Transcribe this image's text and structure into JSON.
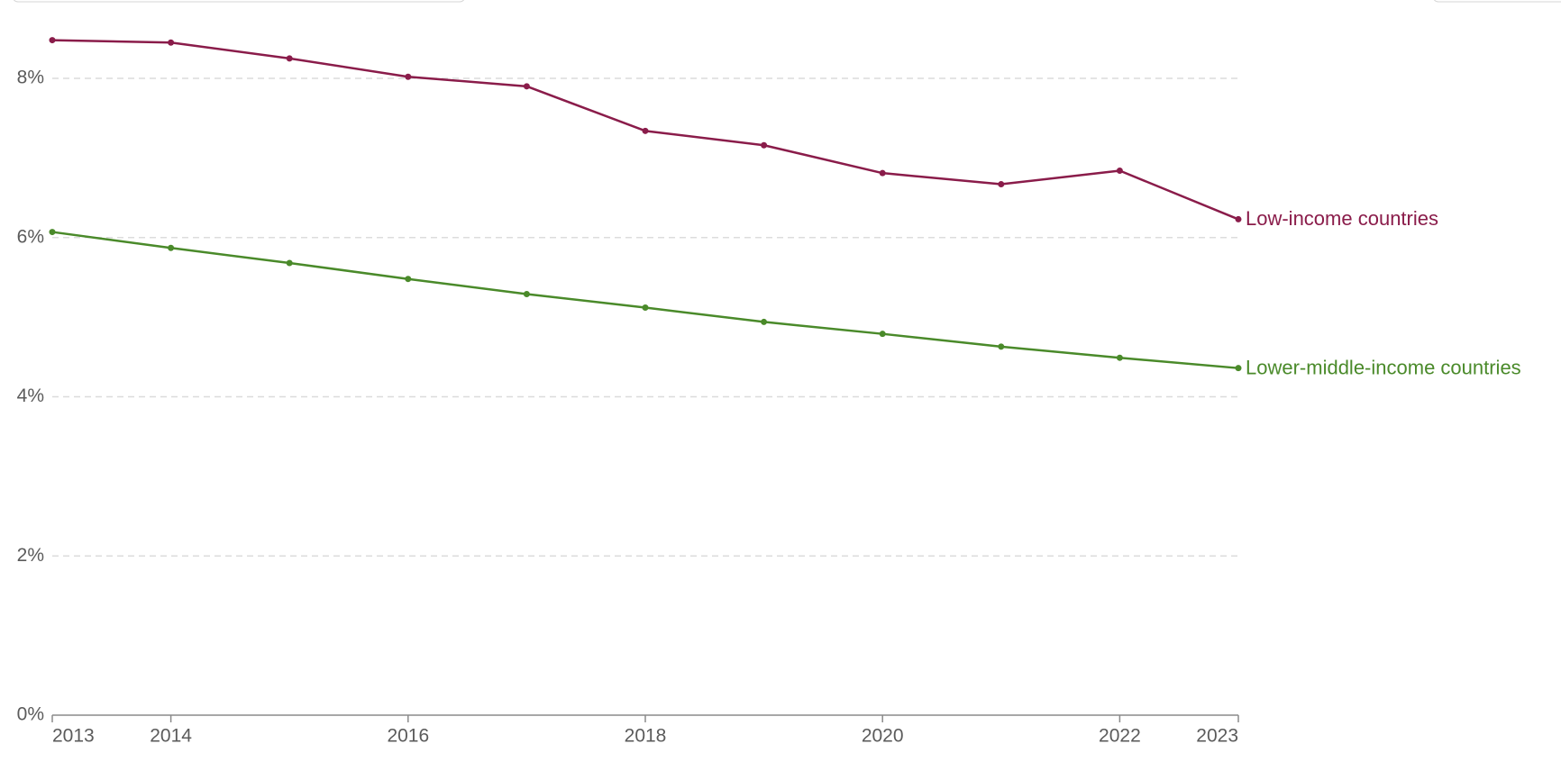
{
  "chart_data": {
    "type": "line",
    "x": [
      2013,
      2014,
      2015,
      2016,
      2017,
      2018,
      2019,
      2020,
      2021,
      2022,
      2023
    ],
    "xlim": [
      2013,
      2023
    ],
    "xticks": [
      2013,
      2014,
      2016,
      2018,
      2020,
      2022,
      2023
    ],
    "ylim": [
      0,
      8
    ],
    "yticks": [
      {
        "value": 0,
        "label": "0%"
      },
      {
        "value": 2,
        "label": "2%"
      },
      {
        "value": 4,
        "label": "4%"
      },
      {
        "value": 6,
        "label": "6%"
      },
      {
        "value": 8,
        "label": "8%"
      }
    ],
    "grid": true,
    "series": [
      {
        "name": "Low-income countries",
        "color": "#8a1c4a",
        "values": [
          8.48,
          8.45,
          8.25,
          8.02,
          7.9,
          7.34,
          7.16,
          6.81,
          6.67,
          6.84,
          6.23
        ]
      },
      {
        "name": "Lower-middle-income countries",
        "color": "#4a8a2a",
        "values": [
          6.07,
          5.87,
          5.68,
          5.48,
          5.29,
          5.12,
          4.94,
          4.79,
          4.63,
          4.49,
          4.36
        ]
      }
    ]
  }
}
